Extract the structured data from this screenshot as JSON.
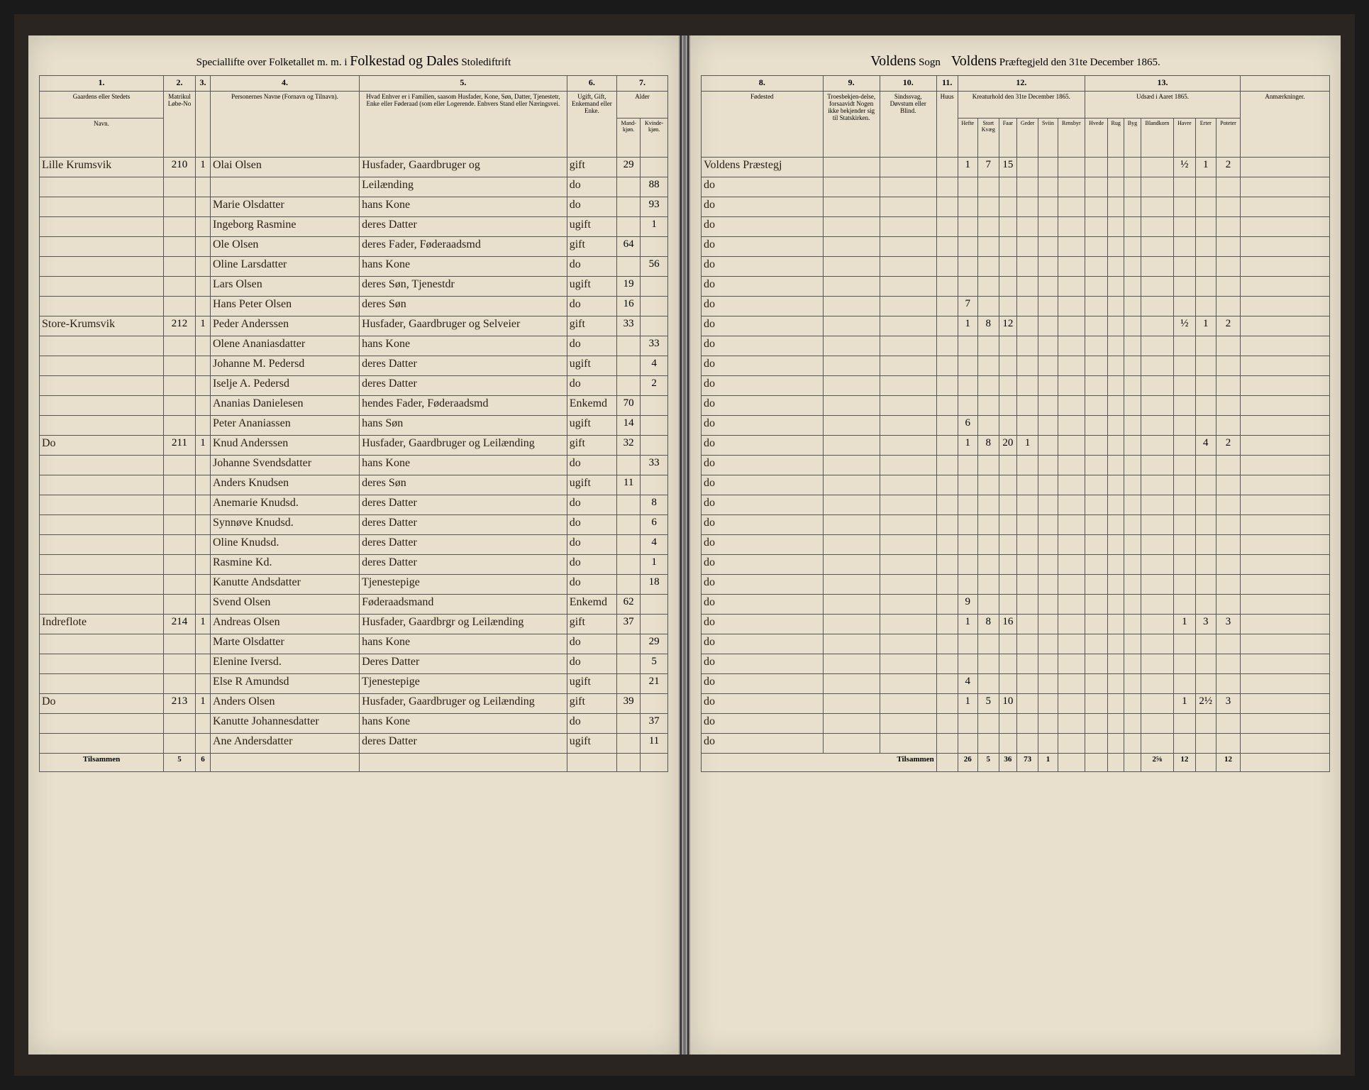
{
  "header": {
    "left_prefix": "Speciallifte over Folketallet m. m. i",
    "district_script": "Folkestad og Dales",
    "district_suffix": "Stolediftrift",
    "right_sogn_label": "Sogn",
    "sogn_script": "Voldens",
    "praest_script": "Voldens",
    "right_suffix": "Præftegjeld den 31te December 1865."
  },
  "col_headers_left": {
    "c1": "1.",
    "c2": "2.",
    "c3": "3.",
    "c4": "4.",
    "c5": "5.",
    "c6": "6.",
    "c7": "7.",
    "c1_label": "Gaardens eller Stedets",
    "c1_sub": "Navn.",
    "c23_label": "Matrikul Løbe-No",
    "c4_label": "Personernes Navne (Fornavn og Tilnavn).",
    "c5_label": "Hvad Enhver er i Familien, saasom Husfader, Kone, Søn, Datter, Tjenestetr, Enke eller Føderaad (som eller Logerende. Enhvers Stand eller Næringsvei.",
    "c6_label": "Ugift, Gift, Enkemand eller Enke.",
    "c7_label": "Alder",
    "c7a": "Mand-kjøn.",
    "c7b": "Kvinde-kjøn."
  },
  "col_headers_right": {
    "c8": "8.",
    "c9": "9.",
    "c10": "10.",
    "c11": "11.",
    "c12": "12.",
    "c13": "13.",
    "c8_label": "Fødested",
    "c9_label": "Troesbekjen-delse, forsaavidt Nogen ikke bekjender sig til Statskirken.",
    "c10_label": "Sindssvag, Døvstum eller Blind.",
    "c11_label": "Huus",
    "c12_label": "Kreaturhold den 31te December 1865.",
    "c13_label": "Udsæd i Aaret 1865.",
    "c14_label": "Anmærkninger.",
    "livestock": [
      "Hefte",
      "Stort Kvæg",
      "Faar",
      "Geder",
      "Sviin",
      "Rensbyr"
    ],
    "crops": [
      "Hvede",
      "Rug",
      "Byg",
      "Blandkorn",
      "Havre",
      "Erter",
      "Poteter"
    ]
  },
  "rows": [
    {
      "farm": "Lille Krumsvik",
      "mno": "210",
      "a": "1",
      "b": "2",
      "name": "Olai Olsen",
      "role": "Husfader, Gaardbruger og",
      "status": "gift",
      "m": "29",
      "f": "",
      "birth": "Voldens Præstegj",
      "l1": "1",
      "l2": "7",
      "l3": "15",
      "c5": "½",
      "c6": "1",
      "c7": "2"
    },
    {
      "farm": "",
      "mno": "",
      "a": "",
      "b": "",
      "name": "",
      "role": "Leilænding",
      "status": "do",
      "m": "",
      "f": "88",
      "birth": "do",
      "l1": "",
      "l2": "",
      "l3": ""
    },
    {
      "farm": "",
      "mno": "",
      "a": "",
      "b": "",
      "name": "Marie Olsdatter",
      "role": "hans Kone",
      "status": "do",
      "m": "",
      "f": "93",
      "birth": "do"
    },
    {
      "farm": "",
      "mno": "",
      "a": "",
      "b": "",
      "name": "Ingeborg Rasmine",
      "role": "deres Datter",
      "status": "ugift",
      "m": "",
      "f": "1",
      "birth": "do"
    },
    {
      "farm": "",
      "mno": "",
      "a": "",
      "b": "",
      "name": "Ole Olsen",
      "role": "deres Fader, Føderaadsmd",
      "status": "gift",
      "m": "64",
      "f": "",
      "birth": "do"
    },
    {
      "farm": "",
      "mno": "",
      "a": "",
      "b": "",
      "name": "Oline Larsdatter",
      "role": "hans Kone",
      "status": "do",
      "m": "",
      "f": "56",
      "birth": "do"
    },
    {
      "farm": "",
      "mno": "",
      "a": "",
      "b": "",
      "name": "Lars Olsen",
      "role": "deres Søn, Tjenestdr",
      "status": "ugift",
      "m": "19",
      "f": "",
      "birth": "do"
    },
    {
      "farm": "",
      "mno": "",
      "a": "",
      "b": "",
      "name": "Hans Peter Olsen",
      "role": "deres Søn",
      "status": "do",
      "m": "16",
      "f": "",
      "birth": "do",
      "l1": "7"
    },
    {
      "farm": "Store-Krumsvik",
      "mno": "212",
      "a": "1",
      "b": "1",
      "name": "Peder Anderssen",
      "role": "Husfader, Gaardbruger og Selveier",
      "status": "gift",
      "m": "33",
      "f": "",
      "birth": "do",
      "l1": "1",
      "l2": "8",
      "l3": "12",
      "c5": "½",
      "c6": "1",
      "c7": "2"
    },
    {
      "farm": "",
      "mno": "",
      "a": "",
      "b": "",
      "name": "Olene Ananiasdatter",
      "role": "hans Kone",
      "status": "do",
      "m": "",
      "f": "33",
      "birth": "do"
    },
    {
      "farm": "",
      "mno": "",
      "a": "",
      "b": "",
      "name": "Johanne M. Pedersd",
      "role": "deres Datter",
      "status": "ugift",
      "m": "",
      "f": "4",
      "birth": "do"
    },
    {
      "farm": "",
      "mno": "",
      "a": "",
      "b": "",
      "name": "Iselje A. Pedersd",
      "role": "deres Datter",
      "status": "do",
      "m": "",
      "f": "2",
      "birth": "do"
    },
    {
      "farm": "",
      "mno": "",
      "a": "",
      "b": "",
      "name": "Ananias Danielesen",
      "role": "hendes Fader, Føderaadsmd",
      "status": "Enkemd",
      "m": "70",
      "f": "",
      "birth": "do"
    },
    {
      "farm": "",
      "mno": "",
      "a": "",
      "b": "",
      "name": "Peter Ananiassen",
      "role": "hans Søn",
      "status": "ugift",
      "m": "14",
      "f": "",
      "birth": "do",
      "l1": "6"
    },
    {
      "farm": "Do",
      "mno": "211",
      "a": "1",
      "b": "1",
      "name": "Knud Anderssen",
      "role": "Husfader, Gaardbruger og Leilænding",
      "status": "gift",
      "m": "32",
      "f": "",
      "birth": "do",
      "l1": "1",
      "l2": "8",
      "l3": "20",
      "l4": "1",
      "c6": "4",
      "c7": "2"
    },
    {
      "farm": "",
      "mno": "",
      "a": "",
      "b": "",
      "name": "Johanne Svendsdatter",
      "role": "hans Kone",
      "status": "do",
      "m": "",
      "f": "33",
      "birth": "do"
    },
    {
      "farm": "",
      "mno": "",
      "a": "",
      "b": "",
      "name": "Anders Knudsen",
      "role": "deres Søn",
      "status": "ugift",
      "m": "11",
      "f": "",
      "birth": "do"
    },
    {
      "farm": "",
      "mno": "",
      "a": "",
      "b": "",
      "name": "Anemarie Knudsd.",
      "role": "deres Datter",
      "status": "do",
      "m": "",
      "f": "8",
      "birth": "do"
    },
    {
      "farm": "",
      "mno": "",
      "a": "",
      "b": "",
      "name": "Synnøve Knudsd.",
      "role": "deres Datter",
      "status": "do",
      "m": "",
      "f": "6",
      "birth": "do"
    },
    {
      "farm": "",
      "mno": "",
      "a": "",
      "b": "",
      "name": "Oline Knudsd.",
      "role": "deres Datter",
      "status": "do",
      "m": "",
      "f": "4",
      "birth": "do"
    },
    {
      "farm": "",
      "mno": "",
      "a": "",
      "b": "",
      "name": "Rasmine Kd.",
      "role": "deres Datter",
      "status": "do",
      "m": "",
      "f": "1",
      "birth": "do"
    },
    {
      "farm": "",
      "mno": "",
      "a": "",
      "b": "",
      "name": "Kanutte Andsdatter",
      "role": "Tjenestepige",
      "status": "do",
      "m": "",
      "f": "18",
      "birth": "do"
    },
    {
      "farm": "",
      "mno": "",
      "a": "",
      "b": "",
      "name": "Svend Olsen",
      "role": "Føderaadsmand",
      "status": "Enkemd",
      "m": "62",
      "f": "",
      "birth": "do",
      "l1": "9"
    },
    {
      "farm": "Indreflote",
      "mno": "214",
      "a": "1",
      "b": "1",
      "name": "Andreas Olsen",
      "role": "Husfader, Gaardbrgr og Leilænding",
      "status": "gift",
      "m": "37",
      "f": "",
      "birth": "do",
      "l1": "1",
      "l2": "8",
      "l3": "16",
      "c5": "1",
      "c6": "3",
      "c7": "3"
    },
    {
      "farm": "",
      "mno": "",
      "a": "",
      "b": "",
      "name": "Marte Olsdatter",
      "role": "hans Kone",
      "status": "do",
      "m": "",
      "f": "29",
      "birth": "do"
    },
    {
      "farm": "",
      "mno": "",
      "a": "",
      "b": "",
      "name": "Elenine Iversd.",
      "role": "Deres Datter",
      "status": "do",
      "m": "",
      "f": "5",
      "birth": "do"
    },
    {
      "farm": "",
      "mno": "",
      "a": "",
      "b": "",
      "name": "Else R Amundsd",
      "role": "Tjenestepige",
      "status": "ugift",
      "m": "",
      "f": "21",
      "birth": "do",
      "l1": "4"
    },
    {
      "farm": "Do",
      "mno": "213",
      "a": "1",
      "b": "1",
      "name": "Anders Olsen",
      "role": "Husfader, Gaardbruger og Leilænding",
      "status": "gift",
      "m": "39",
      "f": "",
      "birth": "do",
      "l1": "1",
      "l2": "5",
      "l3": "10",
      "c5": "1",
      "c6": "2½",
      "c7": "3"
    },
    {
      "farm": "",
      "mno": "",
      "a": "",
      "b": "",
      "name": "Kanutte Johannesdatter",
      "role": "hans Kone",
      "status": "do",
      "m": "",
      "f": "37",
      "birth": "do"
    },
    {
      "farm": "",
      "mno": "",
      "a": "",
      "b": "",
      "name": "Ane Andersdatter",
      "role": "deres Datter",
      "status": "ugift",
      "m": "",
      "f": "11",
      "birth": "do"
    }
  ],
  "footer": {
    "left_label": "Tilsammen",
    "left_a": "5",
    "left_b": "6",
    "right_label": "Tilsammen",
    "totals": [
      "26",
      "5",
      "36",
      "73",
      "1",
      "",
      "",
      "",
      "",
      "2⅝",
      "12",
      "",
      "12"
    ]
  }
}
